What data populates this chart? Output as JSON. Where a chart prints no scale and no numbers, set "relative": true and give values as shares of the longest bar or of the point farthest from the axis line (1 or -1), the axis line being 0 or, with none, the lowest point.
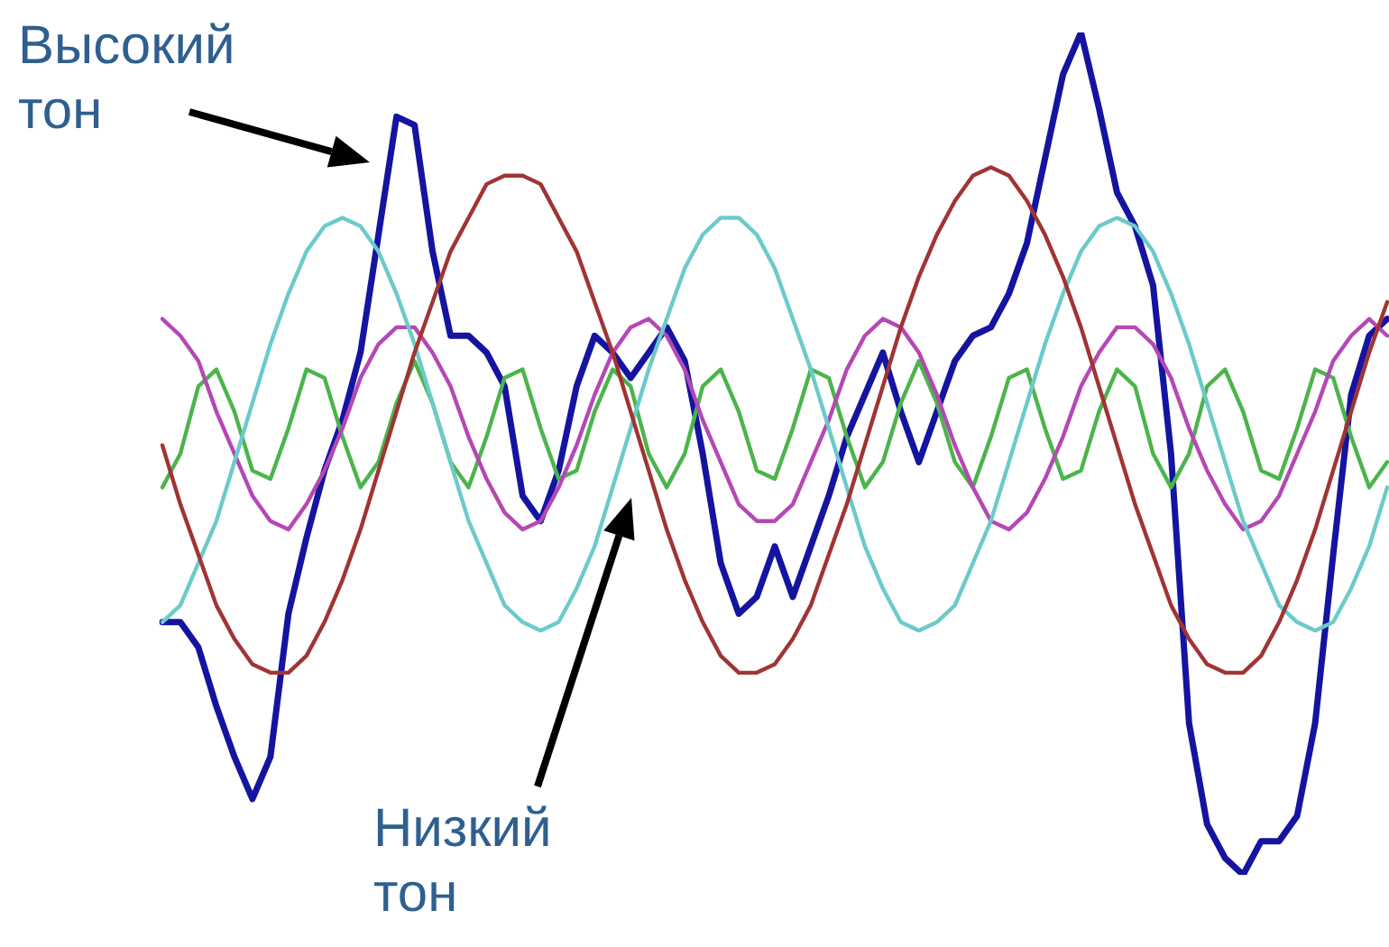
{
  "chart_data": {
    "type": "line",
    "relative": true,
    "legend": false,
    "marker": "none",
    "line_style": "solid",
    "annotations": [
      "Высокий тон",
      "Низкий тон"
    ],
    "categories": [
      null,
      null,
      null,
      null,
      null,
      null,
      null,
      null,
      null,
      null,
      null,
      null,
      null,
      null,
      null,
      null,
      null,
      null,
      null,
      null,
      null,
      null,
      null,
      null,
      null,
      null,
      null,
      null,
      null,
      null,
      null,
      null,
      null,
      null,
      null,
      null,
      null,
      null,
      null,
      null,
      null,
      null,
      null,
      null,
      null,
      null,
      null,
      null,
      null,
      null,
      null,
      null,
      null,
      null,
      null,
      null,
      null,
      null,
      null,
      null,
      null,
      null,
      null,
      null,
      null,
      null,
      null,
      null,
      null
    ],
    "series": [
      {
        "color": "#a03434",
        "values": [
          0.51,
          0.44,
          0.38,
          0.32,
          0.28,
          0.25,
          0.24,
          0.24,
          0.26,
          0.3,
          0.35,
          0.41,
          0.48,
          0.55,
          0.62,
          0.68,
          0.74,
          0.78,
          0.82,
          0.83,
          0.83,
          0.82,
          0.78,
          0.74,
          0.68,
          0.62,
          0.55,
          0.48,
          0.41,
          0.35,
          0.3,
          0.26,
          0.24,
          0.24,
          0.25,
          0.28,
          0.32,
          0.38,
          0.44,
          0.51,
          0.58,
          0.65,
          0.71,
          0.76,
          0.8,
          0.83,
          0.84,
          0.83,
          0.8,
          0.76,
          0.71,
          0.65,
          0.58,
          0.51,
          0.44,
          0.38,
          0.32,
          0.28,
          0.25,
          0.24,
          0.24,
          0.26,
          0.3,
          0.35,
          0.41,
          0.48,
          0.55,
          0.62,
          0.68
        ]
      },
      {
        "color": "#6ccaca",
        "values": [
          0.3,
          0.32,
          0.37,
          0.42,
          0.49,
          0.56,
          0.63,
          0.69,
          0.74,
          0.77,
          0.78,
          0.77,
          0.74,
          0.69,
          0.63,
          0.56,
          0.49,
          0.42,
          0.37,
          0.32,
          0.3,
          0.29,
          0.3,
          0.34,
          0.39,
          0.46,
          0.53,
          0.6,
          0.66,
          0.72,
          0.76,
          0.78,
          0.78,
          0.76,
          0.72,
          0.66,
          0.6,
          0.53,
          0.46,
          0.39,
          0.34,
          0.3,
          0.29,
          0.3,
          0.32,
          0.37,
          0.42,
          0.49,
          0.56,
          0.63,
          0.69,
          0.74,
          0.77,
          0.78,
          0.77,
          0.74,
          0.69,
          0.63,
          0.56,
          0.49,
          0.42,
          0.37,
          0.32,
          0.3,
          0.29,
          0.3,
          0.34,
          0.39,
          0.46
        ]
      },
      {
        "color": "#b448b4",
        "values": [
          0.66,
          0.64,
          0.61,
          0.55,
          0.5,
          0.45,
          0.42,
          0.41,
          0.44,
          0.48,
          0.53,
          0.59,
          0.63,
          0.65,
          0.65,
          0.62,
          0.58,
          0.52,
          0.47,
          0.43,
          0.41,
          0.42,
          0.46,
          0.51,
          0.57,
          0.62,
          0.65,
          0.66,
          0.64,
          0.6,
          0.54,
          0.49,
          0.44,
          0.42,
          0.42,
          0.44,
          0.49,
          0.54,
          0.6,
          0.64,
          0.66,
          0.65,
          0.62,
          0.57,
          0.51,
          0.46,
          0.42,
          0.41,
          0.43,
          0.47,
          0.52,
          0.58,
          0.62,
          0.65,
          0.65,
          0.63,
          0.59,
          0.53,
          0.48,
          0.44,
          0.41,
          0.42,
          0.45,
          0.5,
          0.55,
          0.61,
          0.64,
          0.66,
          0.64
        ]
      },
      {
        "color": "#4cb44c",
        "values": [
          0.46,
          0.5,
          0.58,
          0.6,
          0.55,
          0.48,
          0.47,
          0.53,
          0.6,
          0.59,
          0.52,
          0.46,
          0.49,
          0.56,
          0.61,
          0.56,
          0.49,
          0.46,
          0.52,
          0.59,
          0.6,
          0.53,
          0.47,
          0.48,
          0.55,
          0.6,
          0.58,
          0.5,
          0.46,
          0.5,
          0.58,
          0.6,
          0.55,
          0.48,
          0.47,
          0.53,
          0.6,
          0.59,
          0.52,
          0.46,
          0.49,
          0.56,
          0.61,
          0.56,
          0.49,
          0.46,
          0.52,
          0.59,
          0.6,
          0.53,
          0.47,
          0.48,
          0.55,
          0.6,
          0.58,
          0.5,
          0.46,
          0.5,
          0.58,
          0.6,
          0.55,
          0.48,
          0.47,
          0.53,
          0.6,
          0.59,
          0.52,
          0.46,
          0.49
        ]
      },
      {
        "color": "#1414a0",
        "values": [
          0.3,
          0.3,
          0.27,
          0.2,
          0.14,
          0.09,
          0.14,
          0.31,
          0.4,
          0.48,
          0.54,
          0.62,
          0.76,
          0.9,
          0.89,
          0.74,
          0.64,
          0.64,
          0.62,
          0.58,
          0.45,
          0.42,
          0.48,
          0.58,
          0.64,
          0.62,
          0.59,
          0.62,
          0.65,
          0.61,
          0.5,
          0.37,
          0.31,
          0.33,
          0.39,
          0.33,
          0.39,
          0.45,
          0.52,
          0.57,
          0.62,
          0.55,
          0.49,
          0.55,
          0.61,
          0.64,
          0.65,
          0.69,
          0.75,
          0.85,
          0.95,
          1.0,
          0.91,
          0.81,
          0.77,
          0.7,
          0.5,
          0.18,
          0.06,
          0.02,
          0.0,
          0.04,
          0.04,
          0.07,
          0.18,
          0.38,
          0.57,
          0.64,
          0.66
        ]
      }
    ]
  }
}
